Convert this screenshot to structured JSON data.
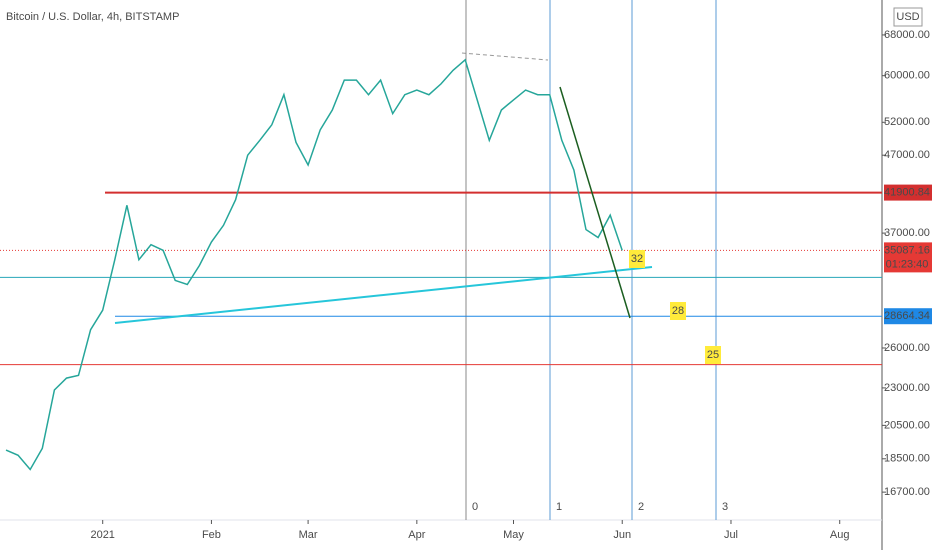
{
  "chart_data": {
    "type": "line",
    "title": "Bitcoin / U.S. Dollar, 4h, BITSTAMP",
    "currency": "USD",
    "log_scale": true,
    "grid": false,
    "categories": [
      null,
      null,
      null,
      null,
      null,
      null,
      null,
      null,
      "2021",
      null,
      null,
      null,
      null,
      null,
      null,
      null,
      null,
      "Feb",
      null,
      null,
      null,
      null,
      null,
      null,
      null,
      "Mar",
      null,
      null,
      null,
      null,
      null,
      null,
      null,
      null,
      "Apr",
      null,
      null,
      null,
      null,
      null,
      null,
      null,
      "May",
      null,
      null,
      null,
      null,
      null,
      null,
      null,
      null,
      "Jun",
      null,
      null,
      null,
      null,
      null,
      null,
      null,
      null,
      "Jul",
      null,
      null,
      null,
      null,
      null,
      null,
      null,
      null,
      "Aug",
      null,
      null,
      null
    ],
    "series": [
      {
        "color": "#26a69a",
        "values": [
          19000,
          18700,
          17900,
          19100,
          22850,
          23700,
          23900,
          27500,
          29200,
          34100,
          40300,
          34100,
          35700,
          35100,
          32000,
          31600,
          33500,
          36000,
          37900,
          41000,
          47000,
          49200,
          51600,
          56600,
          48900,
          45600,
          50800,
          54000,
          59200,
          59200,
          56600,
          59200,
          53400,
          56600,
          57400,
          56600,
          58500,
          61000,
          63000,
          55700,
          49200,
          54000,
          55700,
          57400,
          56600,
          56600,
          49200,
          44900,
          37400,
          36500,
          39100,
          35087.16,
          null,
          null,
          null,
          null,
          null,
          null,
          null,
          null,
          null,
          null,
          null,
          null,
          null,
          null,
          null,
          null,
          null,
          null,
          null,
          null,
          null
        ]
      }
    ],
    "ylim": [
      15330,
      75700
    ],
    "yticks": [
      {
        "value": 16700,
        "label": "16700.00"
      },
      {
        "value": 18500,
        "label": "18500.00"
      },
      {
        "value": 20500,
        "label": "20500.00"
      },
      {
        "value": 23000,
        "label": "23000.00"
      },
      {
        "value": 26000,
        "label": "26000.00"
      },
      {
        "value": 37000,
        "label": "37000.00"
      },
      {
        "value": 47000,
        "label": "47000.00"
      },
      {
        "value": 52000,
        "label": "52000.00"
      },
      {
        "value": 60000,
        "label": "60000.00"
      },
      {
        "value": 68000,
        "label": "68000.00"
      }
    ],
    "levels": [
      {
        "value": 41900.84,
        "color": "#d32f2f"
      },
      {
        "value": 35087.16,
        "color": "#e53935",
        "timer": "01:23:40"
      },
      {
        "value": 32300,
        "color": "#26a6b8"
      },
      {
        "value": 28664.34,
        "color": "#1e88e5"
      },
      {
        "value": 24700,
        "color": "#e53935"
      }
    ],
    "annotations": [
      "32",
      "28",
      "25"
    ],
    "time_zones": [
      "0",
      "1",
      "2",
      "3"
    ]
  }
}
